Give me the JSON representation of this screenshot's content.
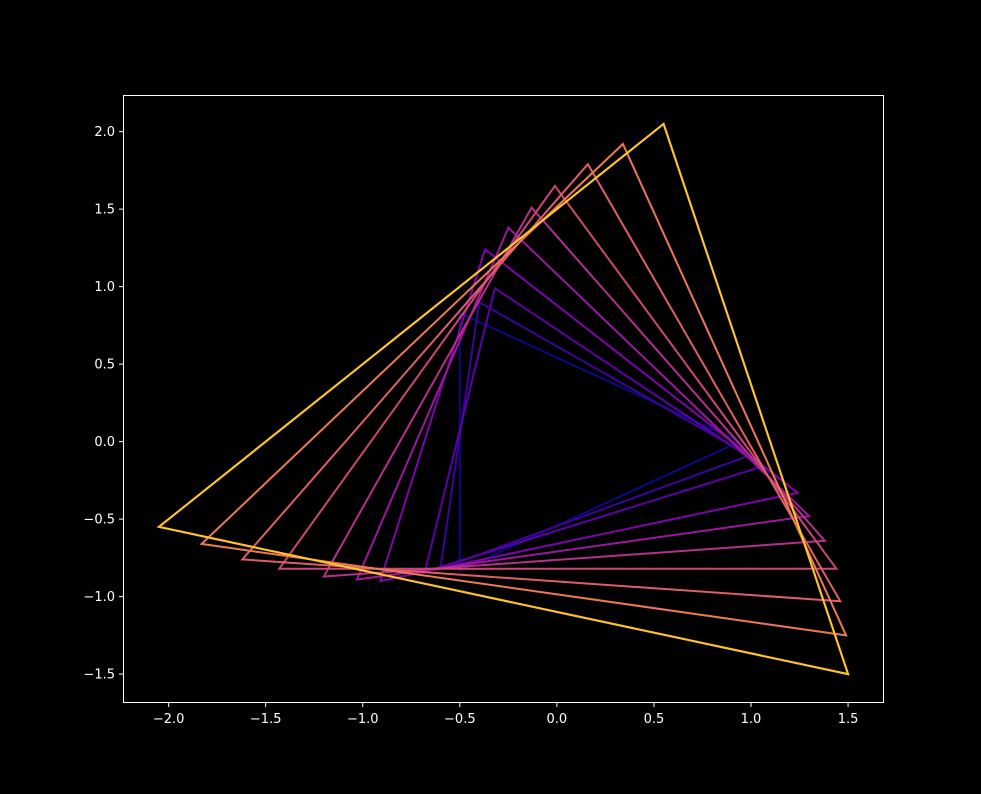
{
  "chart_data": {
    "type": "line",
    "title": "",
    "xlabel": "",
    "ylabel": "",
    "xlim": [
      -2.23,
      1.68
    ],
    "ylim": [
      -1.68,
      2.23
    ],
    "xticks": [
      -2.0,
      -1.5,
      -1.0,
      -0.5,
      0.0,
      0.5,
      1.0,
      1.5
    ],
    "yticks": [
      -1.5,
      -1.0,
      -0.5,
      0.0,
      0.5,
      1.0,
      1.5,
      2.0
    ],
    "xtick_labels": [
      "−2.0",
      "−1.5",
      "−1.0",
      "−0.5",
      "0.0",
      "0.5",
      "1.0",
      "1.5"
    ],
    "ytick_labels": [
      "−1.5",
      "−1.0",
      "−0.5",
      "0.0",
      "0.5",
      "1.0",
      "1.5",
      "2.0"
    ],
    "grid": false,
    "legend": "none",
    "background": "#000000",
    "axes_color": "#ffffff",
    "colormap": "plasma",
    "series": [
      {
        "color": "#0d0887",
        "vertices": [
          [
            -0.5,
            0.83
          ],
          [
            -0.5,
            -0.83
          ],
          [
            0.94,
            0.0
          ]
        ]
      },
      {
        "color": "#3a049a",
        "vertices": [
          [
            -0.4,
            0.9
          ],
          [
            -0.6,
            -0.82
          ],
          [
            0.99,
            -0.09
          ]
        ]
      },
      {
        "color": "#5c01a6",
        "vertices": [
          [
            -0.32,
            0.99
          ],
          [
            -0.68,
            -0.84
          ],
          [
            1.06,
            -0.16
          ]
        ]
      },
      {
        "color": "#7e03a8",
        "vertices": [
          [
            -0.37,
            1.24
          ],
          [
            -0.91,
            -0.9
          ],
          [
            1.24,
            -0.33
          ]
        ]
      },
      {
        "color": "#9c179e",
        "vertices": [
          [
            -0.25,
            1.38
          ],
          [
            -1.03,
            -0.89
          ],
          [
            1.3,
            -0.48
          ]
        ]
      },
      {
        "color": "#b52f8c",
        "vertices": [
          [
            -0.13,
            1.51
          ],
          [
            -1.2,
            -0.87
          ],
          [
            1.38,
            -0.64
          ]
        ]
      },
      {
        "color": "#cc4778",
        "vertices": [
          [
            -0.01,
            1.65
          ],
          [
            -1.43,
            -0.82
          ],
          [
            1.44,
            -0.82
          ]
        ]
      },
      {
        "color": "#de5f65",
        "vertices": [
          [
            0.16,
            1.79
          ],
          [
            -1.62,
            -0.76
          ],
          [
            1.46,
            -1.03
          ]
        ]
      },
      {
        "color": "#ed7953",
        "vertices": [
          [
            0.34,
            1.92
          ],
          [
            -1.83,
            -0.66
          ],
          [
            1.49,
            -1.25
          ]
        ]
      },
      {
        "color": "#f89540",
        "vertices": [
          [
            0.55,
            2.05
          ],
          [
            -2.05,
            -0.55
          ],
          [
            1.5,
            -1.5
          ]
        ]
      },
      {
        "color": "#fdc527",
        "vertices": [
          [
            0.55,
            2.05
          ],
          [
            -2.05,
            -0.55
          ],
          [
            1.5,
            -1.5
          ]
        ]
      }
    ]
  }
}
